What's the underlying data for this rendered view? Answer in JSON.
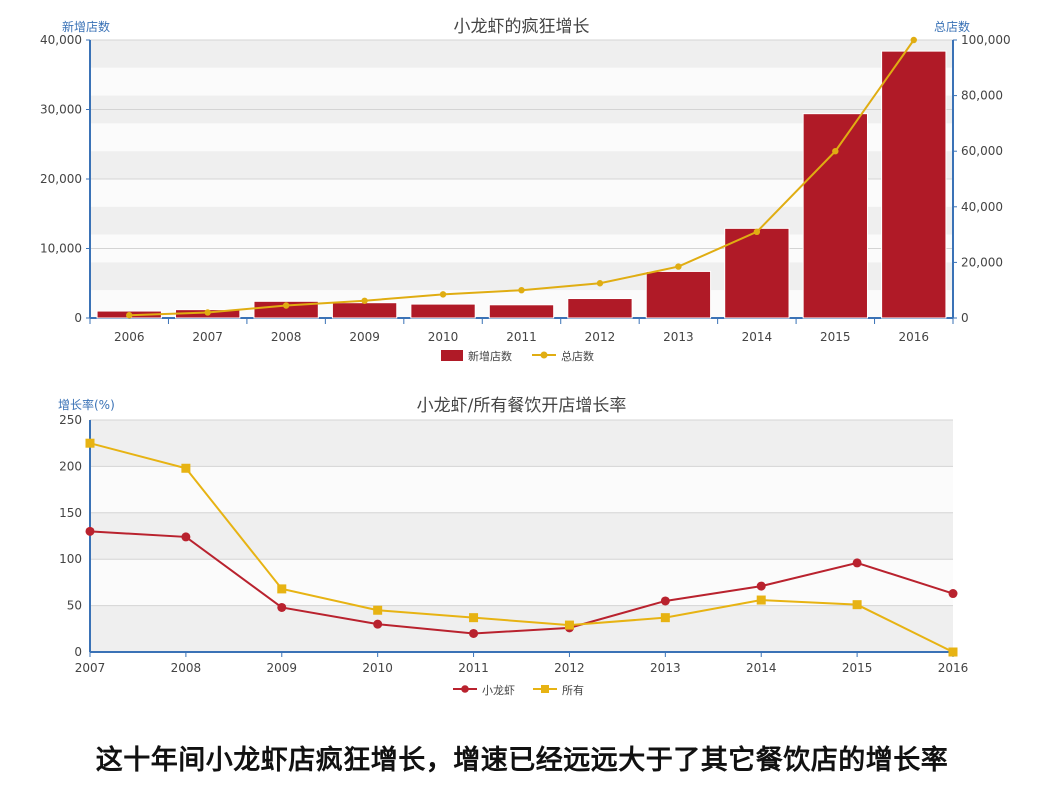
{
  "colors": {
    "bar": "#b01a27",
    "total_line": "#e0ad12",
    "crayfish_line": "#b9222e",
    "all_line": "#e7b313",
    "axis": "#3a72b6"
  },
  "caption": "这十年间小龙虾店疯狂增长，增速已经远远大于了其它餐饮店的增长率",
  "chart_data": [
    {
      "type": "bar",
      "title": "小龙虾的疯狂增长",
      "ylabel_left": "新增店数",
      "ylabel_right": "总店数",
      "categories": [
        "2006",
        "2007",
        "2008",
        "2009",
        "2010",
        "2011",
        "2012",
        "2013",
        "2014",
        "2015",
        "2016"
      ],
      "ylim_left": [
        0,
        40000
      ],
      "yticks_left": [
        "0",
        "10,000",
        "20,000",
        "30,000",
        "40,000"
      ],
      "ylim_right": [
        0,
        100000
      ],
      "yticks_right": [
        "0",
        "20,000",
        "40,000",
        "60,000",
        "80,000",
        "100,000"
      ],
      "series": [
        {
          "name": "新增店数",
          "type": "bar",
          "axis": "left",
          "values": [
            1000,
            1200,
            2400,
            2200,
            2000,
            1900,
            2800,
            6700,
            12900,
            29400,
            38400
          ]
        },
        {
          "name": "总店数",
          "type": "line",
          "axis": "right",
          "values": [
            1000,
            2000,
            4500,
            6200,
            8500,
            10000,
            12500,
            18500,
            31000,
            60000,
            100000
          ]
        }
      ],
      "legend_position": "bottom",
      "grid": true
    },
    {
      "type": "line",
      "title": "小龙虾/所有餐饮开店增长率",
      "ylabel": "增长率(%)",
      "x": [
        "2007",
        "2008",
        "2009",
        "2010",
        "2011",
        "2012",
        "2013",
        "2014",
        "2015",
        "2016"
      ],
      "ylim": [
        0,
        250
      ],
      "yticks": [
        "0",
        "50",
        "100",
        "150",
        "200",
        "250"
      ],
      "series": [
        {
          "name": "小龙虾",
          "marker": "circle",
          "values": [
            130,
            124,
            48,
            30,
            20,
            26,
            55,
            71,
            96,
            63
          ]
        },
        {
          "name": "所有",
          "marker": "square",
          "values": [
            225,
            198,
            68,
            45,
            37,
            29,
            37,
            56,
            51,
            0
          ]
        }
      ],
      "legend_position": "bottom",
      "grid": true
    }
  ]
}
